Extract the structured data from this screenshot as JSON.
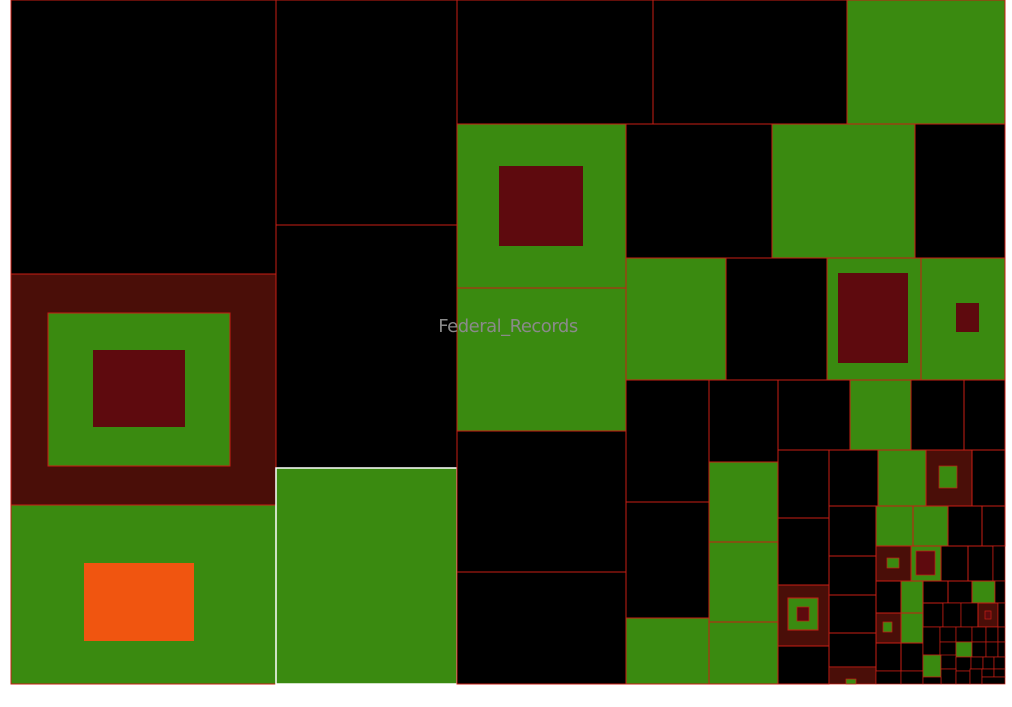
{
  "root_label": "Federal_Records",
  "colors": {
    "background": "#ffffff",
    "empty": "#000000",
    "green": "#3a8a10",
    "maroon": "#5e0a0e",
    "dark_brown": "#4a0e08",
    "orange": "#f05510",
    "border": "#c81e14",
    "highlight_border": "#ffffff"
  }
}
